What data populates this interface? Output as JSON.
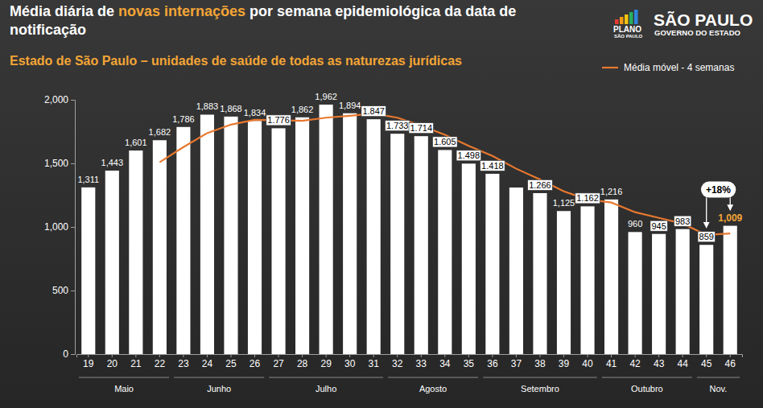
{
  "chart_data": {
    "type": "bar",
    "title": "Média diária de novas internações por semana epidemiológica da data de notificação",
    "title_highlight": "novas internações",
    "subtitle": "Estado de São Paulo – unidades de saúde de todas as naturezas jurídicas",
    "categories": [
      "19",
      "20",
      "21",
      "22",
      "23",
      "24",
      "25",
      "26",
      "27",
      "28",
      "29",
      "30",
      "31",
      "32",
      "33",
      "34",
      "35",
      "36",
      "37",
      "38",
      "39",
      "40",
      "41",
      "42",
      "43",
      "44",
      "45",
      "46"
    ],
    "values": [
      1311,
      1443,
      1601,
      1682,
      1786,
      1883,
      1868,
      1834,
      1776,
      1862,
      1962,
      1894,
      1847,
      1733,
      1714,
      1605,
      1498,
      1418,
      1310,
      1266,
      1125,
      1162,
      1216,
      960,
      945,
      983,
      859,
      1009
    ],
    "value_labels": [
      "1,311",
      "1,443",
      "1,601",
      "1,682",
      "1,786",
      "1,883",
      "1,868",
      "1,834",
      "1.776",
      "1,862",
      "1,962",
      "1,894",
      "1.847",
      "1.733",
      "1.714",
      "1.605",
      "1.498",
      "1.418",
      null,
      "1.266",
      "1,125",
      "1.162",
      "1,216",
      "960",
      "945",
      "983",
      "859",
      "1,009"
    ],
    "color": "#ffffff",
    "data_labels": true,
    "series": [
      {
        "name": "Média móvel - 4 semanas",
        "type": "line",
        "color": "#e8782f",
        "values": [
          null,
          null,
          null,
          1509,
          1628,
          1738,
          1805,
          1843,
          1840,
          1835,
          1859,
          1874,
          1891,
          1859,
          1797,
          1725,
          1638,
          1559,
          1458,
          1373,
          1280,
          1216,
          1192,
          1116,
          1071,
          1026,
          937,
          949
        ]
      }
    ],
    "x_groups": [
      {
        "label": "Maio",
        "from": "19",
        "to": "22"
      },
      {
        "label": "Junho",
        "from": "23",
        "to": "26"
      },
      {
        "label": "Julho",
        "from": "27",
        "to": "31"
      },
      {
        "label": "Agosto",
        "from": "32",
        "to": "35"
      },
      {
        "label": "Setembro",
        "from": "36",
        "to": "40"
      },
      {
        "label": "Outubro",
        "from": "41",
        "to": "44"
      },
      {
        "label": "Nov.",
        "from": "45",
        "to": "46"
      }
    ],
    "ylim": [
      0,
      2000
    ],
    "yticks": [
      0,
      500,
      {
        "value": 1000,
        "label": "1,000"
      },
      {
        "value": 1500,
        "label": "1,500"
      },
      {
        "value": 2000,
        "label": "2,000"
      }
    ],
    "grid": false,
    "legend": "top-right",
    "annotations": [
      "+18%"
    ],
    "logo_texts": [
      "PLANO",
      "SÃO PAULO",
      "SÃO PAULO",
      "GOVERNO DO ESTADO"
    ]
  }
}
